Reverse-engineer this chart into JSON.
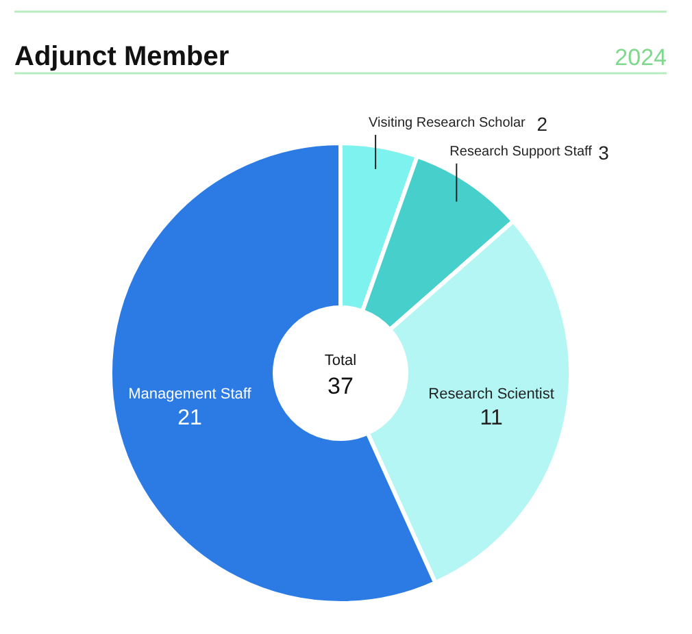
{
  "chart_data": {
    "type": "donut",
    "title": "Adjunct Member",
    "subtitle": "2024",
    "categories": [
      "Visiting Research Scholar",
      "Research Support Staff",
      "Research Scientist",
      "Management Staff"
    ],
    "values": [
      2,
      3,
      11,
      21
    ],
    "colors": [
      "#7df2ee",
      "#47cfcc",
      "#b3f6f4",
      "#2c7be5"
    ],
    "data_labels": true,
    "annotations": [
      "Total",
      "37"
    ]
  }
}
